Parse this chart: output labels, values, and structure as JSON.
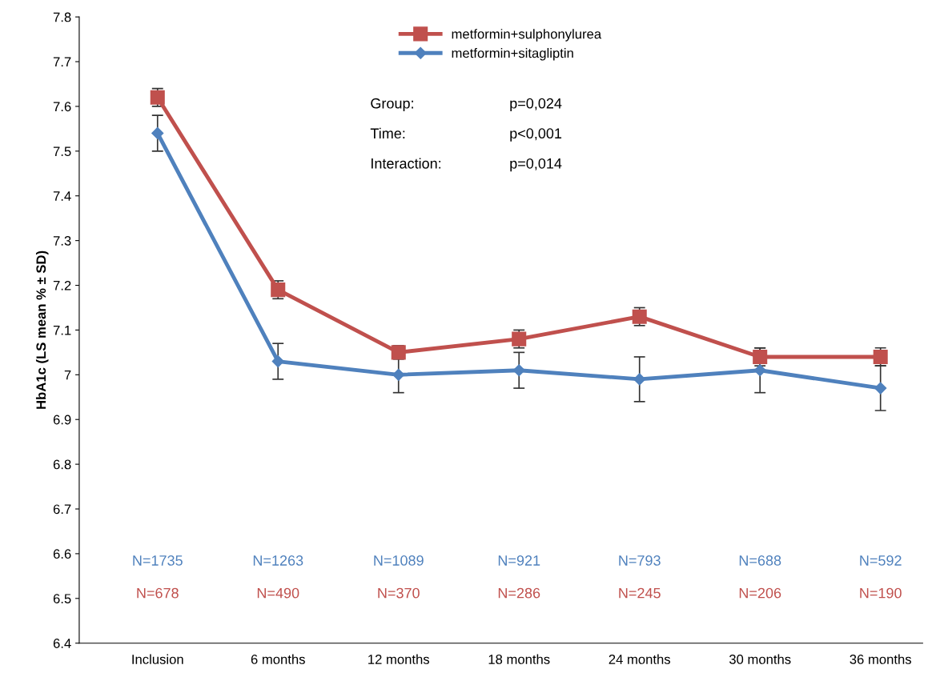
{
  "chart_data": {
    "type": "line",
    "ylabel": "HbA1c (LS mean % ± SD)",
    "categories": [
      "Inclusion",
      "6 months",
      "12 months",
      "18 months",
      "24 months",
      "30 months",
      "36 months"
    ],
    "series": [
      {
        "name": "metformin+sulphonylurea",
        "color": "#c0504d",
        "marker": "square",
        "values": [
          7.62,
          7.19,
          7.05,
          7.08,
          7.13,
          7.04,
          7.04
        ],
        "errors": [
          0.02,
          0.02,
          0.015,
          0.02,
          0.02,
          0.02,
          0.02
        ]
      },
      {
        "name": "metformin+sitagliptin",
        "color": "#4f81bd",
        "marker": "diamond",
        "values": [
          7.54,
          7.03,
          7.0,
          7.01,
          6.99,
          7.01,
          6.97
        ],
        "errors": [
          0.04,
          0.04,
          0.04,
          0.04,
          0.05,
          0.05,
          0.05
        ]
      }
    ],
    "ylim": [
      6.4,
      7.8
    ],
    "yticks": [
      {
        "value": 6.4,
        "label": "6.4"
      },
      {
        "value": 6.5,
        "label": "6.5"
      },
      {
        "value": 6.6,
        "label": "6.6"
      },
      {
        "value": 6.7,
        "label": "6.7"
      },
      {
        "value": 6.8,
        "label": "6.8"
      },
      {
        "value": 6.9,
        "label": "6.9"
      },
      {
        "value": 7.0,
        "label": "7"
      },
      {
        "value": 7.1,
        "label": "7.1"
      },
      {
        "value": 7.2,
        "label": "7.2"
      },
      {
        "value": 7.3,
        "label": "7.3"
      },
      {
        "value": 7.4,
        "label": "7.4"
      },
      {
        "value": 7.5,
        "label": "7.5"
      },
      {
        "value": 7.6,
        "label": "7.6"
      },
      {
        "value": 7.7,
        "label": "7.7"
      },
      {
        "value": 7.8,
        "label": "7.8"
      }
    ],
    "grid": false,
    "legend": "top",
    "line_style": "solid",
    "annotations": [
      "Group:",
      "p=0,024",
      "Time:",
      "p<0,001",
      "Interaction:",
      "p=0,014",
      "N=1735",
      "N=1263",
      "N=1089",
      "N=921",
      "N=793",
      "N=688",
      "N=592",
      "N=678",
      "N=490",
      "N=370",
      "N=286",
      "N=245",
      "N=206",
      "N=190"
    ]
  }
}
